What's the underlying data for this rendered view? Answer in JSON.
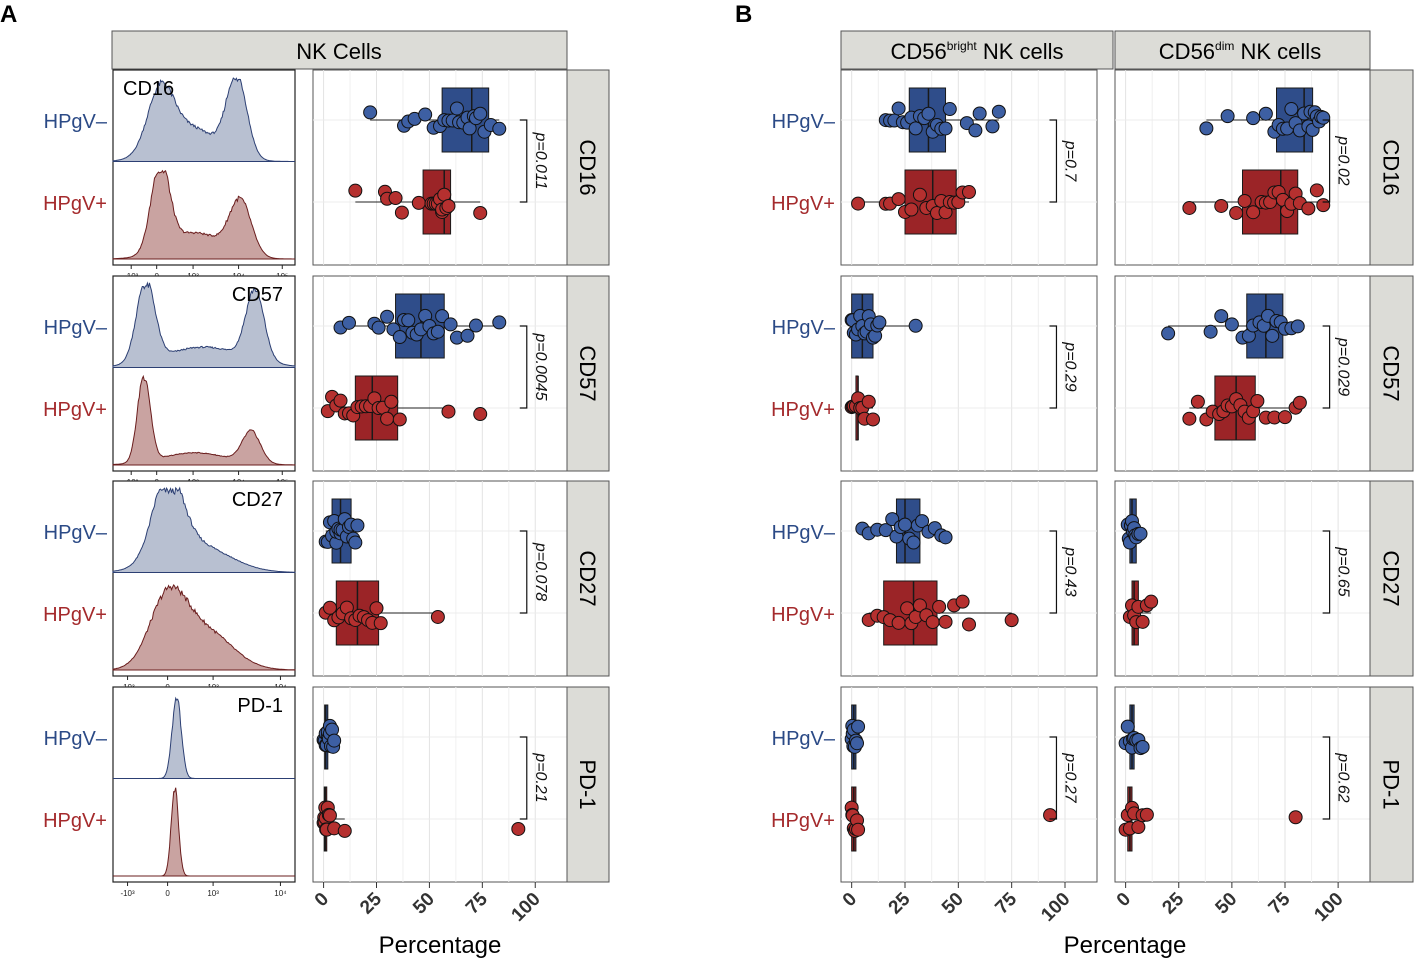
{
  "figure": {
    "panel_labels": [
      "A",
      "B"
    ],
    "strip_titles": {
      "nk": "NK Cells",
      "bright": {
        "main": "CD56",
        "sup": "bright",
        "rest": " NK cells"
      },
      "dim": {
        "main": "CD56",
        "sup": "dim",
        "rest": " NK cells"
      }
    },
    "row_strips": [
      "CD16",
      "CD57",
      "CD27",
      "PD-1"
    ],
    "groups": {
      "neg": "HPgV–",
      "pos": "HPgV+"
    },
    "x_axis_label": "Percentage",
    "x_ticks": [
      0,
      25,
      50,
      75,
      100
    ],
    "hist_axis_ticks_full": [
      "-10³",
      "0",
      "10³",
      "10⁴",
      "10⁵"
    ],
    "hist_axis_ticks_short": [
      "-10³",
      "0",
      "10³",
      "10⁴"
    ]
  },
  "histograms": [
    {
      "marker": "CD16",
      "label_pos": "left",
      "ticks": "full"
    },
    {
      "marker": "CD57",
      "label_pos": "right",
      "ticks": "full"
    },
    {
      "marker": "CD27",
      "label_pos": "right",
      "ticks": "short"
    },
    {
      "marker": "PD-1",
      "label_pos": "right",
      "ticks": "short"
    }
  ],
  "colors": {
    "neg_fill": "#2f4d8a",
    "neg_point": "#3d5fa3",
    "neg_text": "#2b4a86",
    "pos_fill": "#9b2427",
    "pos_point": "#b5302f",
    "pos_text": "#a42a2c",
    "hist_neg_fill": "#b8c0d1",
    "hist_neg_line": "#2c3f73",
    "hist_pos_fill": "#c9a3a1",
    "hist_pos_line": "#6a1d1d",
    "strip_bg": "#dcdcd7"
  },
  "chart_data": [
    {
      "type": "box",
      "title": "NK Cells",
      "xlabel": "Percentage",
      "xlim": [
        -5,
        115
      ],
      "rows": [
        {
          "marker": "CD16",
          "p_value": "p=0.011",
          "neg": {
            "box": {
              "min": 22,
              "q1": 56,
              "median": 70,
              "q3": 78,
              "max": 83
            },
            "points": [
              22,
              38,
              40,
              43,
              48,
              52,
              55,
              57,
              59,
              61,
              63,
              64,
              66,
              68,
              69,
              71,
              72,
              74,
              76,
              79,
              83
            ]
          },
          "pos": {
            "box": {
              "min": 15,
              "q1": 47,
              "median": 57,
              "q3": 60,
              "max": 74
            },
            "points": [
              15,
              29,
              30,
              34,
              37,
              45,
              51,
              52,
              53,
              54,
              55,
              56,
              56,
              57,
              58,
              59,
              74
            ]
          }
        },
        {
          "marker": "CD57",
          "p_value": "p=0.0045",
          "neg": {
            "box": {
              "min": 8,
              "q1": 34,
              "median": 46,
              "q3": 57,
              "max": 83
            },
            "points": [
              8,
              12,
              24,
              26,
              30,
              33,
              36,
              38,
              40,
              42,
              44,
              46,
              48,
              50,
              52,
              54,
              56,
              60,
              63,
              68,
              72,
              83
            ]
          },
          "pos": {
            "box": {
              "min": 2,
              "q1": 15,
              "median": 23,
              "q3": 35,
              "max": 59
            },
            "points": [
              2,
              4,
              6,
              8,
              10,
              12,
              14,
              16,
              18,
              20,
              22,
              24,
              26,
              28,
              30,
              32,
              36,
              59,
              74
            ]
          }
        },
        {
          "marker": "CD27",
          "p_value": "p=0.078",
          "neg": {
            "box": {
              "min": 1,
              "q1": 4,
              "median": 8,
              "q3": 13,
              "max": 16
            },
            "points": [
              1,
              2,
              3,
              4,
              5,
              6,
              6,
              7,
              8,
              8,
              9,
              10,
              11,
              12,
              13,
              14,
              15,
              16
            ]
          },
          "pos": {
            "box": {
              "min": 1,
              "q1": 6,
              "median": 16,
              "q3": 26,
              "max": 54
            },
            "points": [
              1,
              3,
              5,
              7,
              9,
              11,
              13,
              15,
              17,
              19,
              21,
              23,
              25,
              27,
              54
            ]
          }
        },
        {
          "marker": "PD-1",
          "p_value": "p=0.21",
          "neg": {
            "box": {
              "min": 0,
              "q1": 0.5,
              "median": 1,
              "q3": 2,
              "max": 5
            },
            "points": [
              0,
              0.5,
              1,
              1,
              1.5,
              2,
              2,
              2.5,
              3,
              3,
              3.5,
              4,
              4.5,
              5
            ]
          },
          "pos": {
            "box": {
              "min": 0,
              "q1": 0.3,
              "median": 0.8,
              "q3": 1.5,
              "max": 10
            },
            "points": [
              0,
              0.3,
              0.5,
              0.8,
              1,
              1.2,
              1.5,
              2,
              2.5,
              3,
              5,
              10,
              92
            ]
          }
        }
      ]
    },
    {
      "type": "box",
      "title": "CD56bright NK cells",
      "xlabel": "Percentage",
      "xlim": [
        -5,
        115
      ],
      "rows": [
        {
          "marker": "CD16",
          "p_value": "p=0.7",
          "neg": {
            "box": {
              "min": 16,
              "q1": 27,
              "median": 36,
              "q3": 44,
              "max": 69
            },
            "points": [
              16,
              18,
              20,
              22,
              24,
              26,
              28,
              30,
              32,
              34,
              36,
              38,
              40,
              42,
              44,
              46,
              54,
              58,
              60,
              66,
              69
            ]
          },
          "pos": {
            "box": {
              "min": 3,
              "q1": 25,
              "median": 38,
              "q3": 49,
              "max": 55
            },
            "points": [
              3,
              16,
              18,
              22,
              25,
              28,
              32,
              35,
              38,
              40,
              42,
              44,
              46,
              48,
              50,
              52,
              55
            ]
          }
        },
        {
          "marker": "CD57",
          "p_value": "p=0.29",
          "neg": {
            "box": {
              "min": 0,
              "q1": 0,
              "median": 5,
              "q3": 10,
              "max": 30
            },
            "points": [
              0,
              0.5,
              1,
              2,
              3,
              4,
              5,
              6,
              7,
              8,
              9,
              10,
              11,
              12,
              13,
              30
            ]
          },
          "pos": {
            "box": {
              "min": 0,
              "q1": 2,
              "median": 3,
              "q3": 3,
              "max": 10
            },
            "points": [
              0,
              0.5,
              1,
              2,
              3,
              4,
              5,
              6,
              8,
              10
            ]
          }
        },
        {
          "marker": "CD27",
          "p_value": "p=0.43",
          "neg": {
            "box": {
              "min": 5,
              "q1": 21,
              "median": 25,
              "q3": 32,
              "max": 44
            },
            "points": [
              5,
              8,
              12,
              16,
              19,
              21,
              23,
              25,
              27,
              29,
              31,
              33,
              36,
              39,
              42,
              44
            ]
          },
          "pos": {
            "box": {
              "min": 8,
              "q1": 15,
              "median": 29,
              "q3": 40,
              "max": 75
            },
            "points": [
              8,
              12,
              15,
              18,
              22,
              26,
              28,
              30,
              32,
              35,
              38,
              41,
              44,
              48,
              52,
              55,
              75
            ]
          }
        },
        {
          "marker": "PD-1",
          "p_value": "p=0.27",
          "neg": {
            "box": {
              "min": 0,
              "q1": 0,
              "median": 1,
              "q3": 2,
              "max": 3
            },
            "points": [
              0,
              0.3,
              0.5,
              0.8,
              1,
              1.5,
              2,
              2.5,
              3
            ]
          },
          "pos": {
            "box": {
              "min": 0,
              "q1": 0,
              "median": 1,
              "q3": 2,
              "max": 3
            },
            "points": [
              0,
              0.3,
              0.5,
              1,
              1.5,
              2,
              2.5,
              3,
              93
            ]
          }
        }
      ]
    },
    {
      "type": "box",
      "title": "CD56dim NK cells",
      "xlabel": "Percentage",
      "xlim": [
        -5,
        115
      ],
      "rows": [
        {
          "marker": "CD16",
          "p_value": "p=0.02",
          "neg": {
            "box": {
              "min": 38,
              "q1": 71,
              "median": 84,
              "q3": 88,
              "max": 93
            },
            "points": [
              38,
              48,
              60,
              66,
              70,
              72,
              74,
              76,
              78,
              80,
              82,
              84,
              86,
              87,
              88,
              89,
              90,
              91,
              92,
              93
            ]
          },
          "pos": {
            "box": {
              "min": 30,
              "q1": 55,
              "median": 73,
              "q3": 81,
              "max": 93
            },
            "points": [
              30,
              45,
              52,
              56,
              60,
              64,
              66,
              68,
              70,
              72,
              74,
              76,
              78,
              80,
              82,
              86,
              90,
              93
            ]
          }
        },
        {
          "marker": "CD57",
          "p_value": "p=0.029",
          "neg": {
            "box": {
              "min": 20,
              "q1": 57,
              "median": 66,
              "q3": 74,
              "max": 81
            },
            "points": [
              20,
              40,
              45,
              50,
              55,
              58,
              60,
              63,
              65,
              67,
              69,
              71,
              73,
              75,
              78,
              81
            ]
          },
          "pos": {
            "box": {
              "min": 30,
              "q1": 42,
              "median": 52,
              "q3": 61,
              "max": 82
            },
            "points": [
              30,
              34,
              38,
              41,
              44,
              46,
              48,
              50,
              52,
              54,
              56,
              58,
              60,
              62,
              66,
              70,
              75,
              80,
              82
            ]
          }
        },
        {
          "marker": "CD27",
          "p_value": "p=0.65",
          "neg": {
            "box": {
              "min": 1,
              "q1": 2,
              "median": 3,
              "q3": 5,
              "max": 7
            },
            "points": [
              1,
              1.5,
              2,
              2.5,
              3,
              3.5,
              4,
              4.5,
              5,
              6,
              7
            ]
          },
          "pos": {
            "box": {
              "min": 2,
              "q1": 3,
              "median": 4,
              "q3": 6,
              "max": 12
            },
            "points": [
              2,
              3,
              4,
              5,
              6,
              8,
              10,
              12
            ]
          }
        },
        {
          "marker": "PD-1",
          "p_value": "p=0.62",
          "neg": {
            "box": {
              "min": 0,
              "q1": 2,
              "median": 3,
              "q3": 4,
              "max": 8
            },
            "points": [
              0,
              1,
              2,
              3,
              3.5,
              4,
              5,
              6,
              7,
              8
            ]
          },
          "pos": {
            "box": {
              "min": 0,
              "q1": 1,
              "median": 2,
              "q3": 3,
              "max": 10
            },
            "points": [
              0,
              1,
              2,
              3,
              4,
              6,
              8,
              10,
              80
            ]
          }
        }
      ]
    }
  ]
}
